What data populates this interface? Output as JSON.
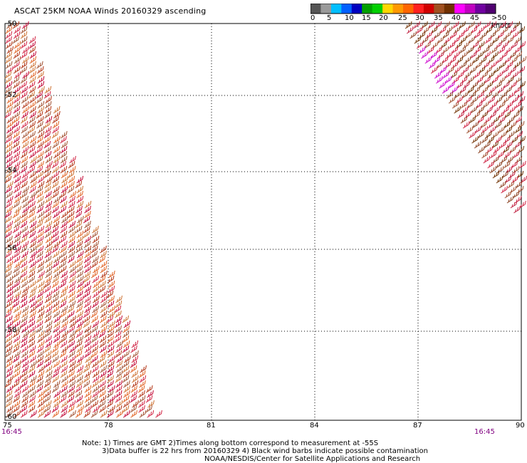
{
  "title": "ASCAT 25KM NOAA Winds 20160329 ascending",
  "colorbar": {
    "colors": [
      "#555555",
      "#9a9a9a",
      "#00bfff",
      "#0060ff",
      "#0000c0",
      "#00a000",
      "#00d000",
      "#ffd700",
      "#ff9900",
      "#ff6600",
      "#ff2020",
      "#d00000",
      "#a05020",
      "#703000",
      "#ff00ff",
      "#c000c0",
      "#7000a0",
      "#500070"
    ],
    "labels": [
      "0",
      "5",
      "10",
      "15",
      "20",
      "25",
      "30",
      "35",
      "40",
      "45",
      ">50 knots"
    ]
  },
  "axes": {
    "lat_labels": [
      "-50",
      "-52",
      "-54",
      "-56",
      "-58",
      "-60"
    ],
    "lon_labels": [
      "75",
      "78",
      "81",
      "84",
      "87",
      "90"
    ]
  },
  "times": {
    "left": "16:45",
    "right": "16:45"
  },
  "notes": [
    "Note: 1) Times are GMT 2)Times along bottom correspond to measurement at -55S",
    "3)Data buffer is 22 hrs from 20160329 4) Black wind barbs indicate possible contamination",
    "NOAA/NESDIS/Center for Satellite Applications and Research"
  ],
  "swaths": [
    {
      "name": "west-swath",
      "barb_colors": [
        "#c00030",
        "#d02040",
        "#b03010",
        "#e06020",
        "#cc7030",
        "#a05030"
      ]
    },
    {
      "name": "east-swath",
      "barb_colors": [
        "#a05030",
        "#c02040",
        "#d02040",
        "#8a4020",
        "#703000",
        "#cc2040"
      ],
      "contamination_color": "#cc00cc"
    }
  ]
}
